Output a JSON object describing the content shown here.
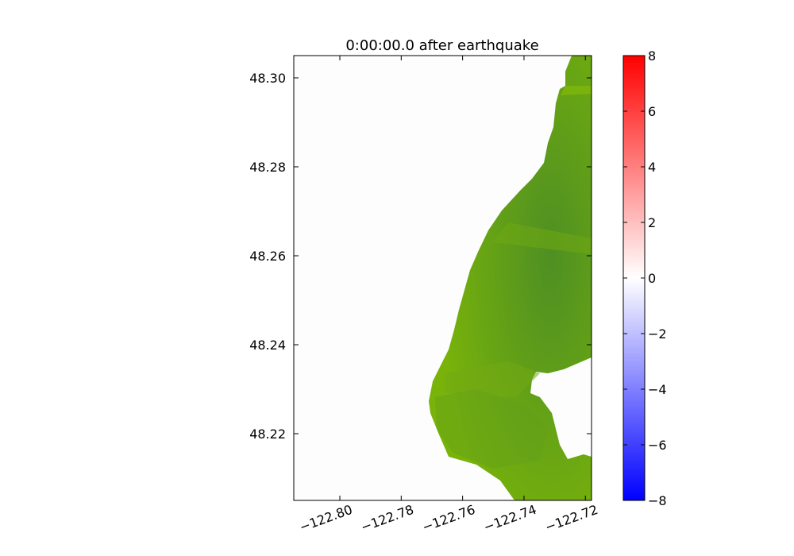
{
  "chart_data": {
    "type": "heatmap",
    "title": "0:00:00.0 after earthquake",
    "xlabel": "",
    "ylabel": "",
    "xlim": [
      -122.815,
      -122.718
    ],
    "ylim": [
      48.205,
      48.305
    ],
    "x_ticks": [
      -122.8,
      -122.78,
      -122.76,
      -122.74,
      -122.72
    ],
    "x_tick_labels": [
      "−122.80",
      "−122.78",
      "−122.76",
      "−122.74",
      "−122.72"
    ],
    "y_ticks": [
      48.3,
      48.28,
      48.26,
      48.24,
      48.22
    ],
    "y_tick_labels": [
      "48.30",
      "48.28",
      "48.26",
      "48.24",
      "48.22"
    ],
    "colorbar": {
      "range": [
        -8,
        8
      ],
      "ticks": [
        8,
        6,
        4,
        2,
        0,
        -2,
        -4,
        -6,
        -8
      ],
      "tick_labels": [
        "8",
        "6",
        "4",
        "2",
        "0",
        "−2",
        "−4",
        "−6",
        "−8"
      ],
      "colormap": [
        "#0000ff",
        "#ffffff",
        "#ff0000"
      ]
    },
    "land_colors": [
      "#79b30a",
      "#4e8f23"
    ],
    "grid": false
  }
}
